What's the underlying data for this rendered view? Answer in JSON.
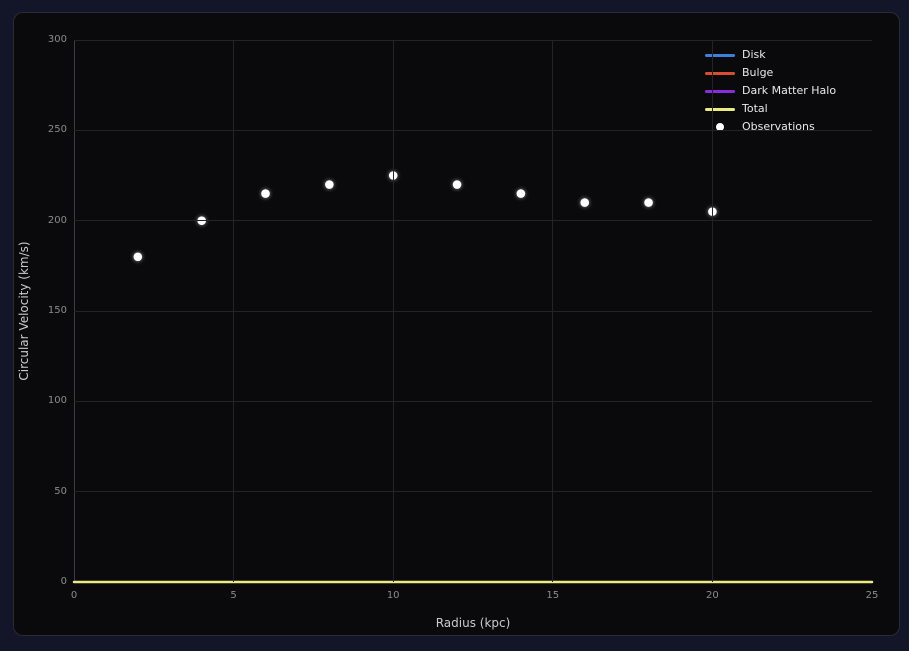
{
  "window": {
    "background": "#121628",
    "card_background": "#0a0a0c",
    "card_border": "#2b2b30"
  },
  "axes_style": {
    "grid_color": "#242427",
    "spine_color": "#3e3e42",
    "tick_label_color": "#8b8b8b",
    "axis_title_color": "#cbcbcb",
    "legend_text_color": "#e8e8e8"
  },
  "chart_data": {
    "type": "scatter",
    "title": "",
    "xlabel": "Radius (kpc)",
    "ylabel": "Circular Velocity (km/s)",
    "xlim": [
      0,
      25
    ],
    "ylim": [
      0,
      300
    ],
    "xticks": [
      0,
      5,
      10,
      15,
      20,
      25
    ],
    "yticks": [
      0,
      50,
      100,
      150,
      200,
      250,
      300
    ],
    "grid": true,
    "legend": {
      "position": "upper right",
      "entries": [
        {
          "label": "Disk",
          "type": "line",
          "color": "#3d7fd9"
        },
        {
          "label": "Bulge",
          "type": "line",
          "color": "#d94f2e"
        },
        {
          "label": "Dark Matter Halo",
          "type": "line",
          "color": "#8a2be2"
        },
        {
          "label": "Total",
          "type": "line",
          "color": "#ebeb82"
        },
        {
          "label": "Observations",
          "type": "marker",
          "color": "#ffffff"
        }
      ]
    },
    "series": [
      {
        "name": "Disk",
        "type": "line",
        "color": "#3d7fd9",
        "linewidth": 2,
        "x": [
          0,
          25
        ],
        "y": [
          0,
          0
        ]
      },
      {
        "name": "Bulge",
        "type": "line",
        "color": "#d94f2e",
        "linewidth": 2,
        "x": [
          0,
          25
        ],
        "y": [
          0,
          0
        ]
      },
      {
        "name": "Dark Matter Halo",
        "type": "line",
        "color": "#8a2be2",
        "linewidth": 2,
        "x": [
          0,
          25
        ],
        "y": [
          0,
          0
        ]
      },
      {
        "name": "Total",
        "type": "line",
        "color": "#ebeb82",
        "linewidth": 2.5,
        "x": [
          0,
          25
        ],
        "y": [
          0,
          0
        ]
      },
      {
        "name": "Observations",
        "type": "scatter",
        "color": "#ffffff",
        "marker_radius": 4.3,
        "x": [
          2,
          4,
          6,
          8,
          10,
          12,
          14,
          16,
          18,
          20
        ],
        "y": [
          180,
          200,
          215,
          220,
          225,
          220,
          215,
          210,
          210,
          205
        ]
      }
    ]
  }
}
